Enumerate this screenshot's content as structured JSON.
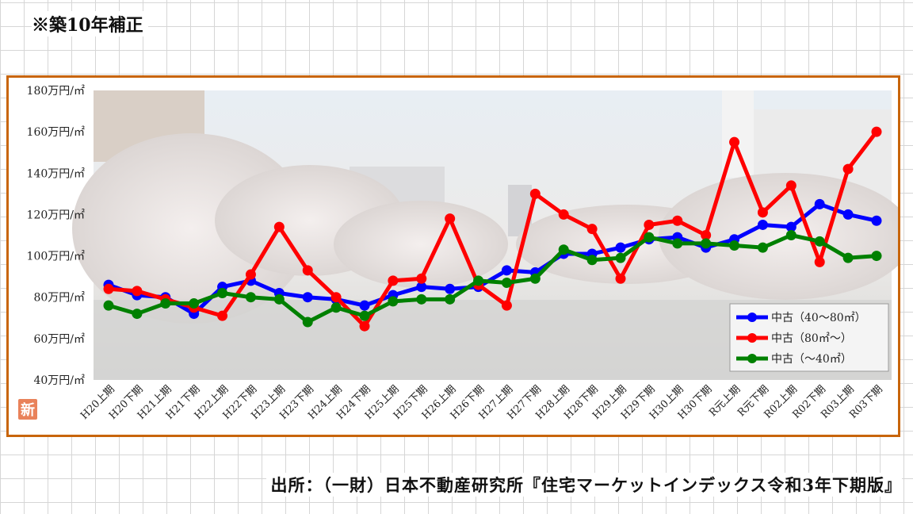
{
  "note": "※築10年補正",
  "source": "出所：（一財）日本不動産研究所『住宅マーケットインデックス令和3年下期版』",
  "badge": "新",
  "colors": {
    "frame": "#c8650a",
    "badge": "#e9825a",
    "blue": "#0000ff",
    "red": "#ff0000",
    "green": "#008000"
  },
  "chart_data": {
    "type": "line",
    "yunit": "万円/㎡",
    "ylim": [
      40,
      180
    ],
    "ytick_labels": [
      "180万円/㎡",
      "160万円/㎡",
      "140万円/㎡",
      "120万円/㎡",
      "100万円/㎡",
      "80万円/㎡",
      "60万円/㎡",
      "40万円/㎡"
    ],
    "yticks": [
      180,
      160,
      140,
      120,
      100,
      80,
      60,
      40
    ],
    "categories": [
      "H20上期",
      "H20下期",
      "H21上期",
      "H21下期",
      "H22上期",
      "H22下期",
      "H23上期",
      "H23下期",
      "H24上期",
      "H24下期",
      "H25上期",
      "H25下期",
      "H26上期",
      "H26下期",
      "H27上期",
      "H27下期",
      "H28上期",
      "H28下期",
      "H29上期",
      "H29下期",
      "H30上期",
      "H30下期",
      "R元上期",
      "R元下期",
      "R02上期",
      "R02下期",
      "R03上期",
      "R03下期"
    ],
    "legend_position": "bottom-right",
    "series": [
      {
        "name": "中古（40～80㎡）",
        "color": "#0000ff",
        "values": [
          86,
          81,
          80,
          72,
          85,
          88,
          82,
          80,
          79,
          76,
          81,
          85,
          84,
          85,
          93,
          92,
          101,
          101,
          104,
          108,
          109,
          104,
          108,
          115,
          114,
          125,
          120,
          117
        ]
      },
      {
        "name": "中古（80㎡～）",
        "color": "#ff0000",
        "values": [
          84,
          83,
          79,
          75,
          71,
          91,
          114,
          93,
          80,
          66,
          88,
          89,
          118,
          86,
          76,
          130,
          120,
          113,
          89,
          115,
          117,
          110,
          155,
          121,
          134,
          97,
          142,
          160
        ]
      },
      {
        "name": "中古（～40㎡）",
        "color": "#008000",
        "values": [
          76,
          72,
          77,
          77,
          82,
          80,
          79,
          68,
          75,
          71,
          78,
          79,
          79,
          88,
          87,
          89,
          103,
          98,
          99,
          109,
          106,
          106,
          105,
          104,
          110,
          107,
          99,
          100
        ]
      }
    ]
  }
}
